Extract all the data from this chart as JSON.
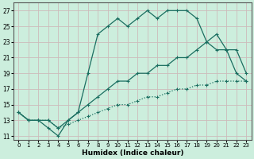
{
  "xlabel": "Humidex (Indice chaleur)",
  "bg_color": "#cceedd",
  "grid_color": "#aaccbb",
  "line_color": "#1a6e60",
  "xlim": [
    -0.5,
    23.5
  ],
  "ylim": [
    10.5,
    28.0
  ],
  "xticks": [
    0,
    1,
    2,
    3,
    4,
    5,
    6,
    7,
    8,
    9,
    10,
    11,
    12,
    13,
    14,
    15,
    16,
    17,
    18,
    19,
    20,
    21,
    22,
    23
  ],
  "yticks": [
    11,
    13,
    15,
    17,
    19,
    21,
    23,
    25,
    27
  ],
  "line1_x": [
    0,
    1,
    2,
    3,
    4,
    5,
    6,
    7,
    8,
    9,
    10,
    11,
    12,
    13,
    14,
    15,
    16,
    17,
    18,
    19,
    20,
    21,
    22,
    23
  ],
  "line1_y": [
    14,
    13,
    13,
    13,
    12,
    12.5,
    13,
    13.5,
    14,
    14.5,
    15,
    15,
    15.5,
    16,
    16,
    16.5,
    17,
    17,
    17.5,
    17.5,
    18,
    18,
    18,
    18
  ],
  "line2_x": [
    0,
    1,
    2,
    3,
    4,
    5,
    6,
    7,
    8,
    9,
    10,
    11,
    12,
    13,
    14,
    15,
    16,
    17,
    18,
    19,
    20,
    21,
    22,
    23
  ],
  "line2_y": [
    14,
    13,
    13,
    13,
    12,
    13,
    14,
    15,
    16,
    17,
    18,
    18,
    19,
    19,
    20,
    20,
    21,
    21,
    22,
    23,
    24,
    22,
    22,
    19
  ],
  "line3_x": [
    0,
    1,
    2,
    3,
    4,
    5,
    6,
    7,
    8,
    9,
    10,
    11,
    12,
    13,
    14,
    15,
    16,
    17,
    18,
    19,
    20,
    21,
    22,
    23
  ],
  "line3_y": [
    14,
    13,
    13,
    12,
    11,
    13,
    14,
    19,
    24,
    25,
    26,
    25,
    26,
    27,
    26,
    27,
    27,
    27,
    26,
    23,
    22,
    22,
    19,
    18
  ]
}
